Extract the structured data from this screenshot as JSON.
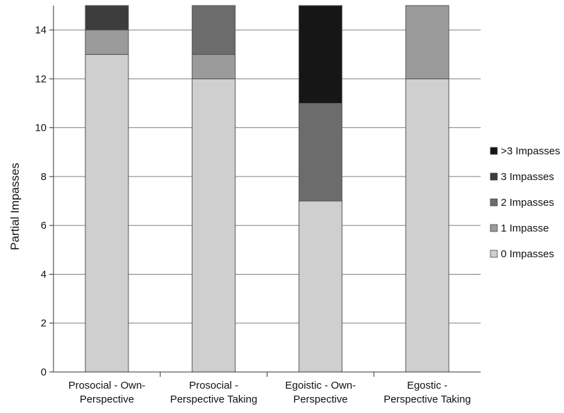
{
  "chart_data": {
    "type": "bar",
    "stacked": true,
    "ylabel": "Partial Impasses",
    "xlabel": "",
    "ylim": [
      0,
      15
    ],
    "yticks": [
      0,
      2,
      4,
      6,
      8,
      10,
      12,
      14
    ],
    "grid": true,
    "legend_position": "right",
    "categories": [
      [
        "Prosocial - Own-",
        "Perspective"
      ],
      [
        "Prosocial -",
        "Perspective Taking"
      ],
      [
        "Egoistic - Own-",
        "Perspective"
      ],
      [
        "Egostic -",
        "Perspective Taking"
      ]
    ],
    "series": [
      {
        "name": "0 Impasses",
        "color": "#cfcfcf",
        "values": [
          13,
          12,
          7,
          12
        ]
      },
      {
        "name": "1 Impasse",
        "color": "#9b9b9b",
        "values": [
          1,
          1,
          0,
          3
        ]
      },
      {
        "name": "2 Impasses",
        "color": "#6c6c6c",
        "values": [
          0,
          2,
          4,
          0
        ]
      },
      {
        "name": "3 Impasses",
        "color": "#3c3c3c",
        "values": [
          1,
          0,
          0,
          0
        ]
      },
      {
        "name": ">3 Impasses",
        "color": "#161616",
        "values": [
          0,
          0,
          4,
          0
        ]
      }
    ],
    "legend_order": [
      ">3 Impasses",
      "3 Impasses",
      "2 Impasses",
      "1 Impasse",
      "0 Impasses"
    ]
  }
}
